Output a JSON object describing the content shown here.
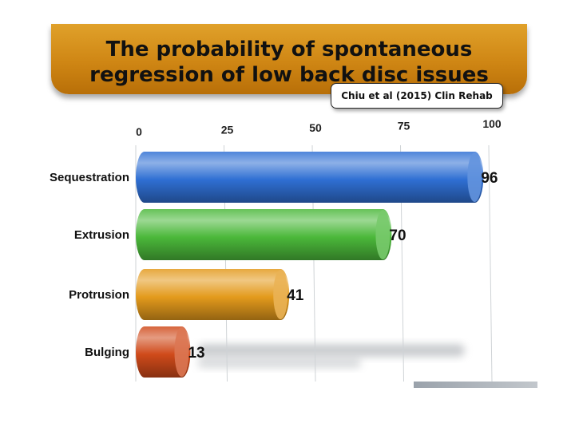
{
  "title": {
    "line1": "The probability of spontaneous",
    "line2": "regression of low back disc issues"
  },
  "citation": "Chiu et al (2015) Clin Rehab",
  "chart_data": {
    "type": "bar",
    "orientation": "horizontal",
    "categories": [
      "Sequestration",
      "Extrusion",
      "Protrusion",
      "Bulging"
    ],
    "values": [
      96,
      70,
      41,
      13
    ],
    "data_labels": [
      "96",
      "70",
      "41",
      "13"
    ],
    "xlim": [
      0,
      100
    ],
    "x_ticks": [
      0,
      25,
      50,
      75,
      100
    ],
    "x_axis_position": "top",
    "grid": true,
    "legend": "none",
    "colors": [
      "#2f6fd3",
      "#4bb83a",
      "#e39a1c",
      "#cf4a1a"
    ]
  }
}
